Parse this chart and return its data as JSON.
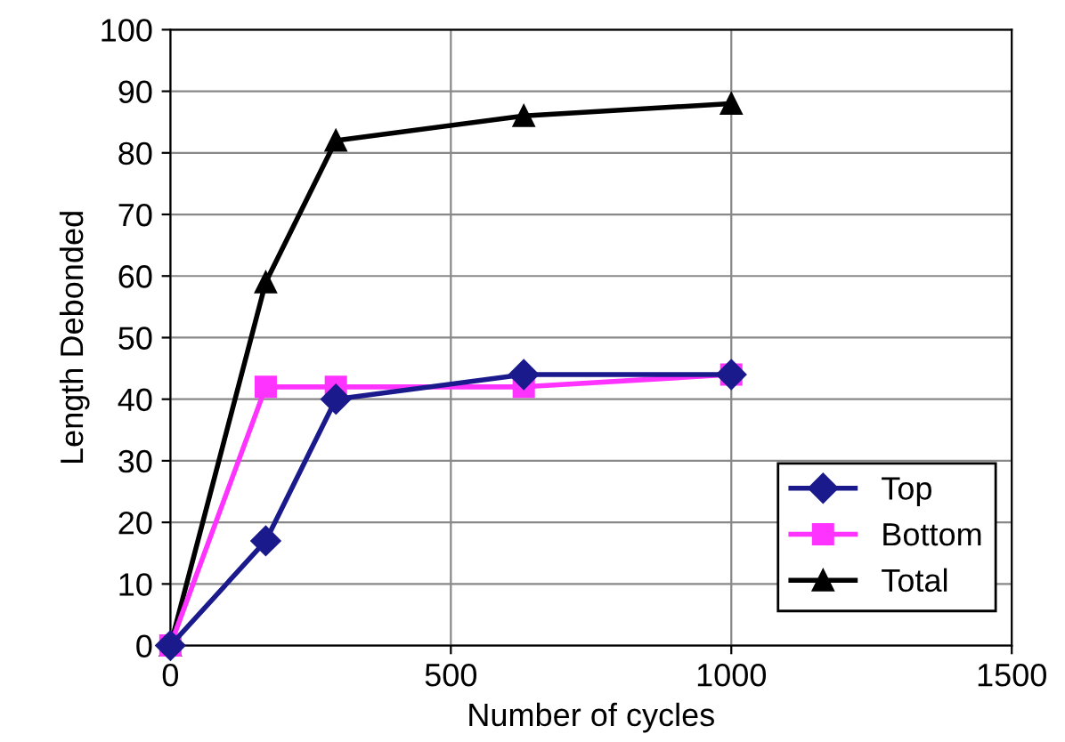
{
  "chart_data": {
    "type": "line",
    "xlabel": "Number of cycles",
    "ylabel": "Length Debonded",
    "x": [
      0,
      170,
      295,
      630,
      1000
    ],
    "series": [
      {
        "name": "Top",
        "color": "#1a1a8c",
        "marker": "diamond",
        "values": [
          0,
          17,
          40,
          44,
          44
        ]
      },
      {
        "name": "Bottom",
        "color": "#ff33ff",
        "marker": "square",
        "values": [
          0,
          42,
          42,
          42,
          44
        ]
      },
      {
        "name": "Total",
        "color": "#000000",
        "marker": "triangle",
        "values": [
          0,
          59,
          82,
          86,
          88
        ]
      }
    ],
    "xlim": [
      0,
      1500
    ],
    "xticks": [
      0,
      500,
      1000,
      1500
    ],
    "ylim": [
      0,
      100
    ],
    "yticks": [
      0,
      10,
      20,
      30,
      40,
      50,
      60,
      70,
      80,
      90,
      100
    ],
    "grid": true,
    "legend": "bottom right"
  }
}
